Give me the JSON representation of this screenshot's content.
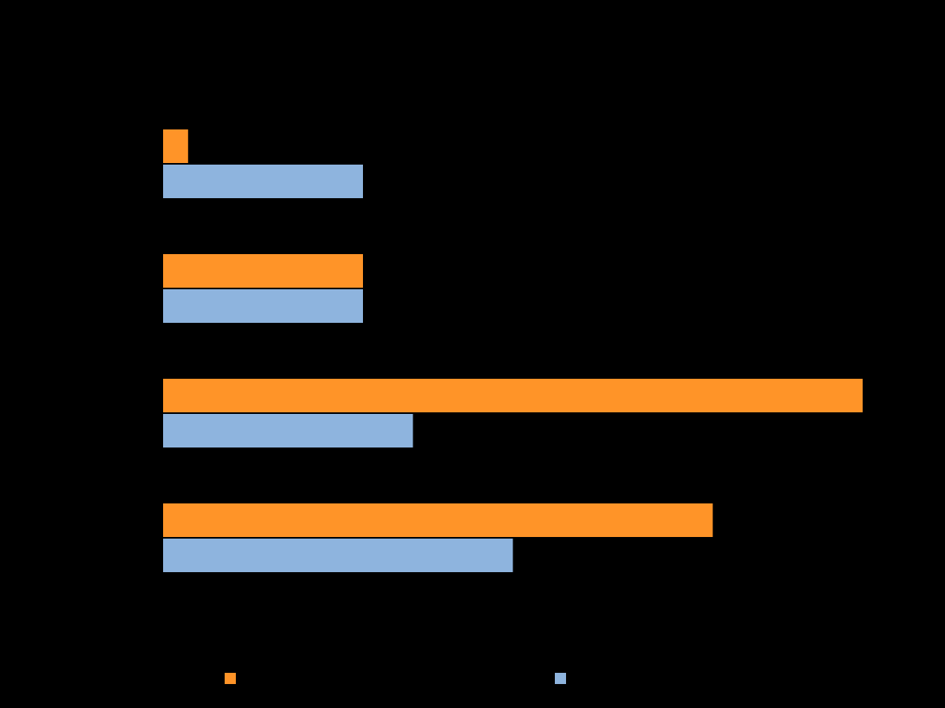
{
  "chart_data": {
    "type": "bar",
    "orientation": "horizontal",
    "categories": [
      "",
      "",
      "",
      ""
    ],
    "series": [
      {
        "name": "",
        "color": "#FF9428",
        "values": [
          1,
          8,
          28,
          22
        ]
      },
      {
        "name": "",
        "color": "#8EB4DE",
        "values": [
          8,
          8,
          10,
          14
        ]
      }
    ],
    "xlim": [
      0,
      28
    ],
    "grid": false,
    "legend": "bottom",
    "title": "",
    "xlabel": "",
    "ylabel": ""
  }
}
